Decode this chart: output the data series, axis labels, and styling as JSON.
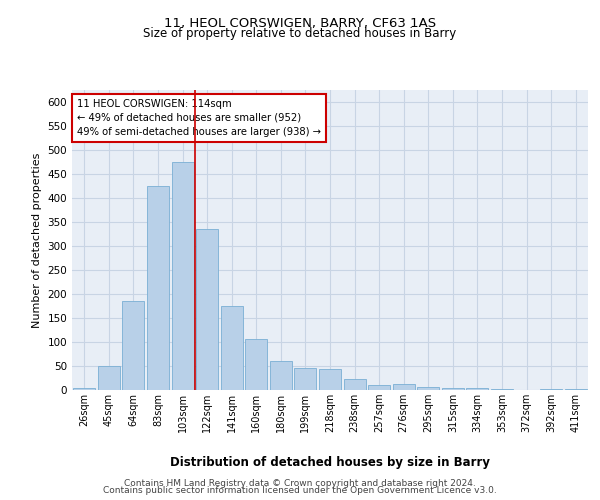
{
  "title1": "11, HEOL CORSWIGEN, BARRY, CF63 1AS",
  "title2": "Size of property relative to detached houses in Barry",
  "xlabel": "Distribution of detached houses by size in Barry",
  "ylabel": "Number of detached properties",
  "categories": [
    "26sqm",
    "45sqm",
    "64sqm",
    "83sqm",
    "103sqm",
    "122sqm",
    "141sqm",
    "160sqm",
    "180sqm",
    "199sqm",
    "218sqm",
    "238sqm",
    "257sqm",
    "276sqm",
    "295sqm",
    "315sqm",
    "334sqm",
    "353sqm",
    "372sqm",
    "392sqm",
    "411sqm"
  ],
  "values": [
    5,
    50,
    185,
    425,
    475,
    335,
    175,
    107,
    60,
    45,
    43,
    22,
    10,
    12,
    6,
    4,
    4,
    2,
    1,
    3,
    2
  ],
  "bar_color": "#b8d0e8",
  "bar_edge_color": "#7aafd4",
  "grid_color": "#c8d4e4",
  "background_color": "#e8eef6",
  "vline_color": "#cc0000",
  "annotation_box_color": "#cc0000",
  "annotation_text": "11 HEOL CORSWIGEN: 114sqm\n← 49% of detached houses are smaller (952)\n49% of semi-detached houses are larger (938) →",
  "footer1": "Contains HM Land Registry data © Crown copyright and database right 2024.",
  "footer2": "Contains public sector information licensed under the Open Government Licence v3.0.",
  "ylim": [
    0,
    625
  ],
  "yticks": [
    0,
    50,
    100,
    150,
    200,
    250,
    300,
    350,
    400,
    450,
    500,
    550,
    600
  ],
  "vline_pos": 4.5,
  "title1_fontsize": 9.5,
  "title2_fontsize": 8.5
}
